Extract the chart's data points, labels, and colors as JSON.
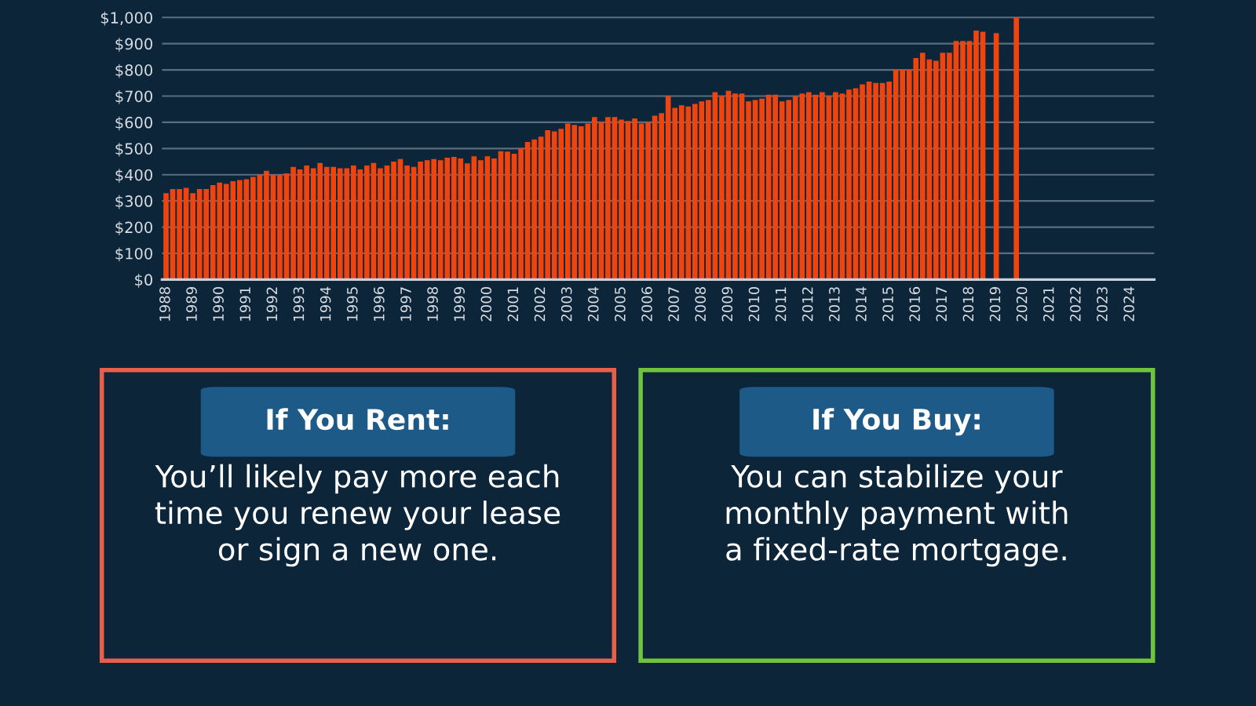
{
  "chart_data": [
    {
      "type": "bar",
      "color": "#f0440f",
      "grid": "y",
      "ylim": [
        0,
        1010
      ],
      "yticks": [
        {
          "value": 0,
          "label": "$0"
        },
        {
          "value": 100,
          "label": "$100"
        },
        {
          "value": 200,
          "label": "$200"
        },
        {
          "value": 300,
          "label": "$300"
        },
        {
          "value": 400,
          "label": "$400"
        },
        {
          "value": 500,
          "label": "$500"
        },
        {
          "value": 600,
          "label": "$600"
        },
        {
          "value": 700,
          "label": "$700"
        },
        {
          "value": 800,
          "label": "$800"
        },
        {
          "value": 900,
          "label": "$900"
        },
        {
          "value": 1000,
          "label": "$1,000"
        }
      ],
      "categories": [
        "1988",
        null,
        null,
        null,
        "1989",
        null,
        null,
        null,
        "1990",
        null,
        null,
        null,
        "1991",
        null,
        null,
        null,
        "1992",
        null,
        null,
        null,
        "1993",
        null,
        null,
        null,
        "1994",
        null,
        null,
        null,
        "1995",
        null,
        null,
        null,
        "1996",
        null,
        null,
        null,
        "1997",
        null,
        null,
        null,
        "1998",
        null,
        null,
        null,
        "1999",
        null,
        null,
        null,
        "2000",
        null,
        null,
        null,
        "2001",
        null,
        null,
        null,
        "2002",
        null,
        null,
        null,
        "2003",
        null,
        null,
        null,
        "2004",
        null,
        null,
        null,
        "2005",
        null,
        null,
        null,
        "2006",
        null,
        null,
        null,
        "2007",
        null,
        null,
        null,
        "2008",
        null,
        null,
        null,
        "2009",
        null,
        null,
        null,
        "2010",
        null,
        null,
        null,
        "2011",
        null,
        null,
        null,
        "2012",
        null,
        null,
        null,
        "2013",
        null,
        null,
        null,
        "2014",
        null,
        null,
        null,
        "2015",
        null,
        null,
        null,
        "2016",
        null,
        null,
        null,
        "2017",
        null,
        null,
        null,
        "2018",
        null,
        null,
        null,
        "2019",
        null,
        null,
        null,
        "2020",
        null,
        null,
        null,
        "2021",
        null,
        null,
        null,
        "2022",
        null,
        null,
        null,
        "2023",
        null,
        null,
        null,
        "2024",
        null,
        null,
        null
      ],
      "values": [
        330,
        345,
        345,
        350,
        330,
        345,
        345,
        360,
        370,
        365,
        375,
        380,
        383,
        392,
        400,
        415,
        400,
        400,
        405,
        430,
        420,
        435,
        425,
        445,
        430,
        430,
        425,
        425,
        435,
        420,
        435,
        445,
        425,
        435,
        450,
        460,
        435,
        430,
        450,
        455,
        460,
        455,
        465,
        468,
        462,
        443,
        470,
        455,
        470,
        462,
        490,
        488,
        480,
        500,
        525,
        535,
        545,
        570,
        565,
        575,
        595,
        590,
        585,
        595,
        620,
        600,
        620,
        620,
        610,
        605,
        615,
        595,
        600,
        625,
        635,
        700,
        655,
        665,
        660,
        670,
        680,
        685,
        715,
        700,
        720,
        710,
        710,
        680,
        685,
        690,
        705,
        705,
        680,
        685,
        700,
        710,
        715,
        705,
        715,
        700,
        715,
        710,
        725,
        730,
        745,
        755,
        750,
        750,
        755,
        800,
        800,
        800,
        845,
        865,
        840,
        835,
        865,
        865,
        910,
        910,
        910,
        950,
        945,
        null,
        940,
        null,
        null,
        1000,
        null,
        null,
        null,
        null,
        null,
        null,
        null,
        null,
        null,
        null,
        null,
        null,
        null,
        null,
        null,
        null,
        null,
        null,
        null,
        null
      ]
    },
    {
      "type": "other",
      "title": "If You Rent:",
      "color": "#e8604a",
      "annotations": [
        "You’ll likely pay more each\ntime you renew your lease\nor sign a new one."
      ]
    },
    {
      "type": "other",
      "title": "If You Buy:",
      "color": "#6ec43e",
      "annotations": [
        "You can stabilize your\nmonthly payment with\na fixed-rate mortgage."
      ]
    }
  ]
}
